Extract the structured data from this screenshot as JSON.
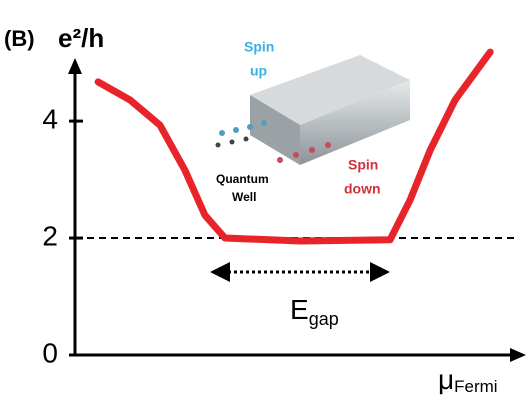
{
  "chart_data": {
    "type": "line",
    "panel_label": "(B)",
    "y_label": "e²/h",
    "x_label": {
      "symbol": "μ",
      "subscript": "Fermi"
    },
    "x": [
      0.52,
      1.24,
      1.91,
      2.47,
      2.92,
      3.37,
      5.06,
      7.08,
      7.53,
      7.98,
      8.54,
      9.33
    ],
    "series": [
      {
        "color": "#e8242b",
        "values": [
          4.67,
          4.36,
          3.93,
          3.16,
          2.39,
          2.0,
          1.95,
          1.97,
          2.65,
          3.5,
          4.36,
          5.18
        ]
      }
    ],
    "xlim": [
      0,
      10
    ],
    "ylim": [
      0,
      5.25
    ],
    "yticks": [
      0,
      2,
      4
    ],
    "reference_line": 2,
    "gap_label": {
      "symbol": "E",
      "subscript": "gap"
    },
    "inset": {
      "spin_up": [
        "Spin",
        "up"
      ],
      "spin_down": [
        "Spin",
        "down"
      ],
      "well": [
        "Quantum",
        "Well"
      ]
    }
  }
}
